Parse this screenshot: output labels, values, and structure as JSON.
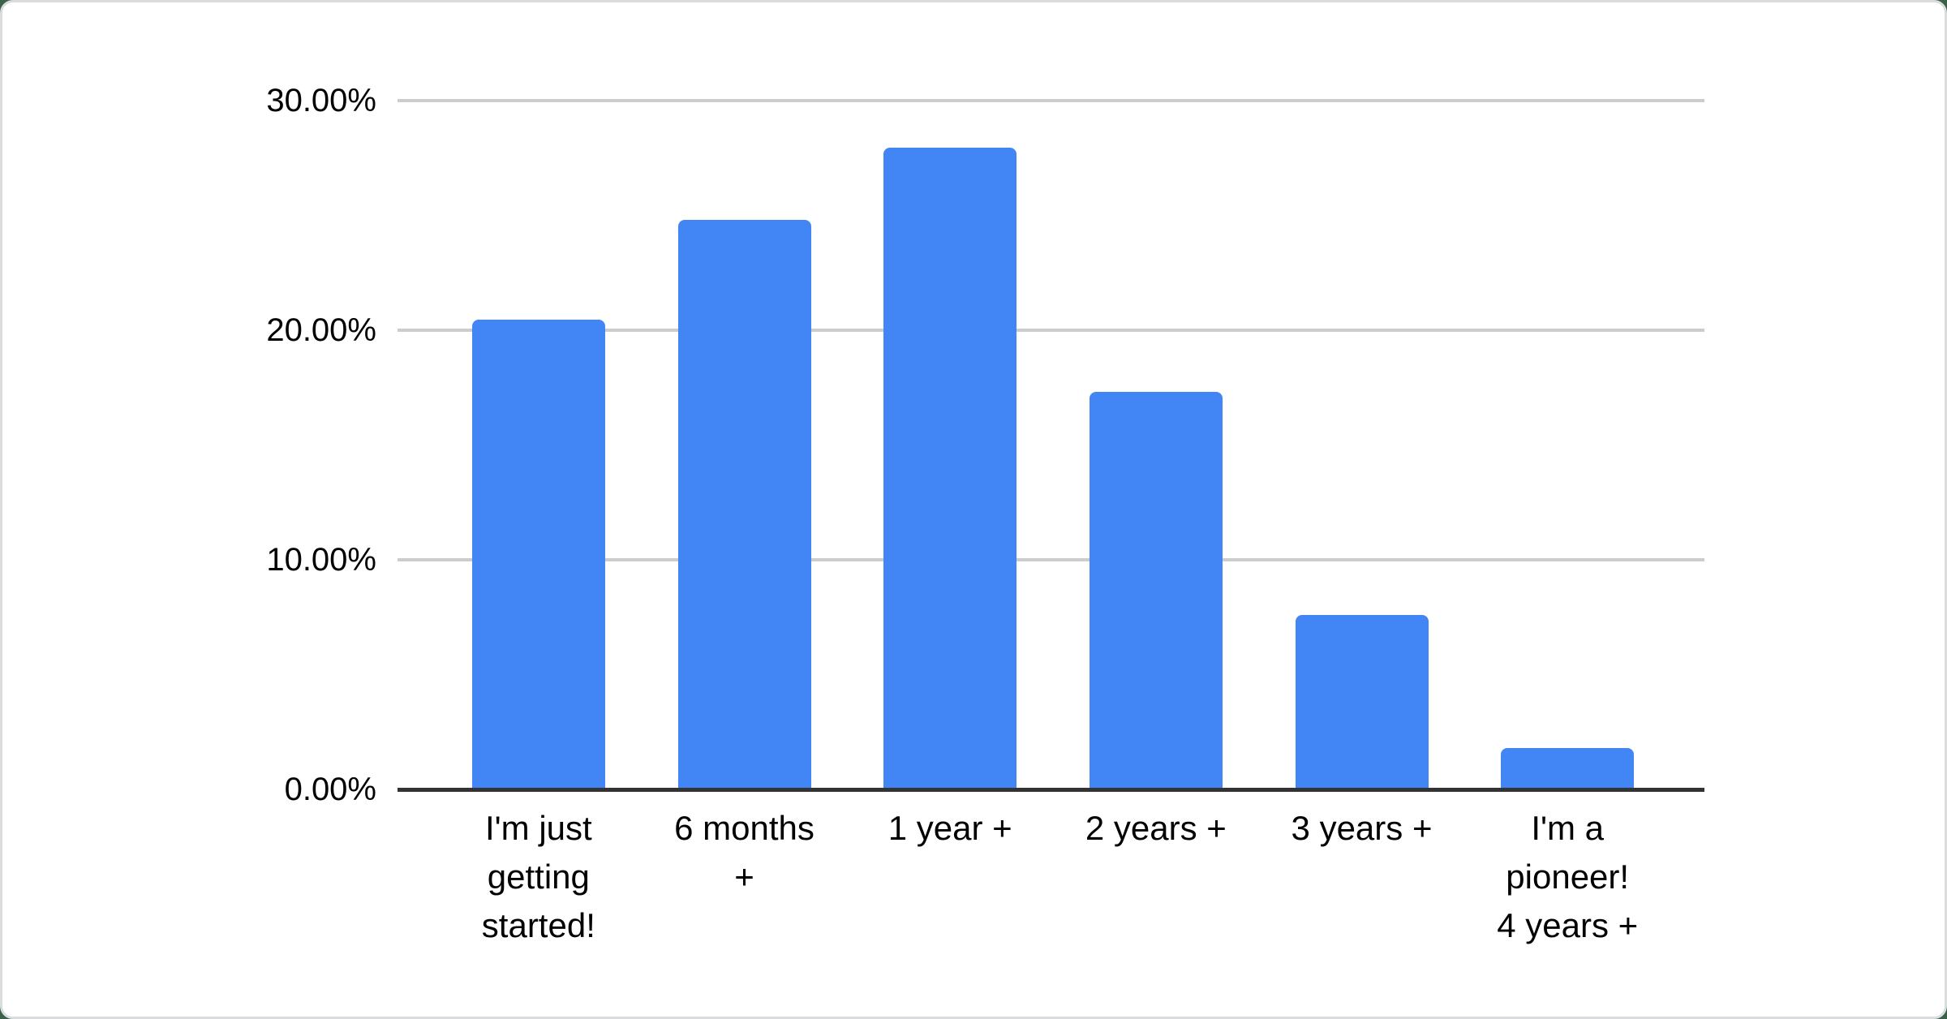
{
  "page": {
    "background_color": "#3a6249",
    "card_color": "#ffffff",
    "card_border_color": "#d9dde0"
  },
  "chart_data": {
    "type": "bar",
    "categories": [
      "I'm just getting started!",
      "6 months +",
      "1 year +",
      "2 years +",
      "3 years +",
      "I'm a pioneer! 4 years +"
    ],
    "category_lines": [
      [
        "I'm just",
        "getting",
        "started!"
      ],
      [
        "6 months",
        "+"
      ],
      [
        "1 year +"
      ],
      [
        "2 years +"
      ],
      [
        "3 years +"
      ],
      [
        "I'm a",
        "pioneer!",
        "4 years +"
      ]
    ],
    "values": [
      20.45,
      24.8,
      27.95,
      17.3,
      7.6,
      1.8
    ],
    "unit": "%",
    "ylim": [
      0,
      30
    ],
    "yticks": [
      {
        "value": 0,
        "label": "0.00%"
      },
      {
        "value": 10,
        "label": "10.00%"
      },
      {
        "value": 20,
        "label": "20.00%"
      },
      {
        "value": 30,
        "label": "30.00%"
      }
    ],
    "grid": true,
    "legend": "none",
    "bar_color": "#4285f4",
    "gridline_color": "#cccccc",
    "axis_line_color": "#333333",
    "text_color": "#000000"
  }
}
